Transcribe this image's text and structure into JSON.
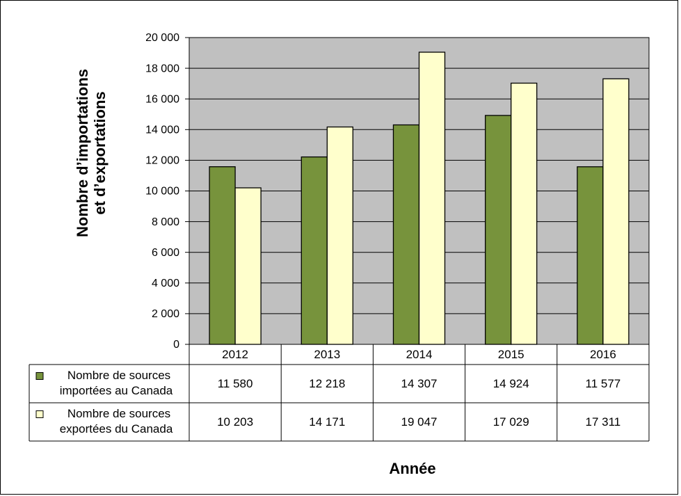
{
  "chart_data": {
    "type": "bar",
    "categories": [
      "2012",
      "2013",
      "2014",
      "2015",
      "2016"
    ],
    "series": [
      {
        "name_lines": [
          "Nombre de sources",
          "importées au Canada"
        ],
        "color": "#77933c",
        "values": [
          11580,
          12218,
          14307,
          14924,
          11577
        ],
        "value_labels": [
          "11 580",
          "12 218",
          "14 307",
          "14 924",
          "11 577"
        ]
      },
      {
        "name_lines": [
          "Nombre de sources",
          "exportées du Canada"
        ],
        "color": "#ffffcc",
        "values": [
          10203,
          14171,
          19047,
          17029,
          17311
        ],
        "value_labels": [
          "10 203",
          "14 171",
          "19 047",
          "17 029",
          "17 311"
        ]
      }
    ],
    "ylim": [
      0,
      20000
    ],
    "y_ticks": [
      0,
      2000,
      4000,
      6000,
      8000,
      10000,
      12000,
      14000,
      16000,
      18000,
      20000
    ],
    "y_tick_labels": [
      "0",
      "2 000",
      "4 000",
      "6 000",
      "8 000",
      "10 000",
      "12 000",
      "14 000",
      "16 000",
      "18 000",
      "20 000"
    ],
    "ylabel_lines": [
      "Nombre d’importations",
      "et d’exportations"
    ],
    "xlabel": "Année",
    "plot_background": "#c0c0c0",
    "grid": true,
    "data_table": true
  }
}
